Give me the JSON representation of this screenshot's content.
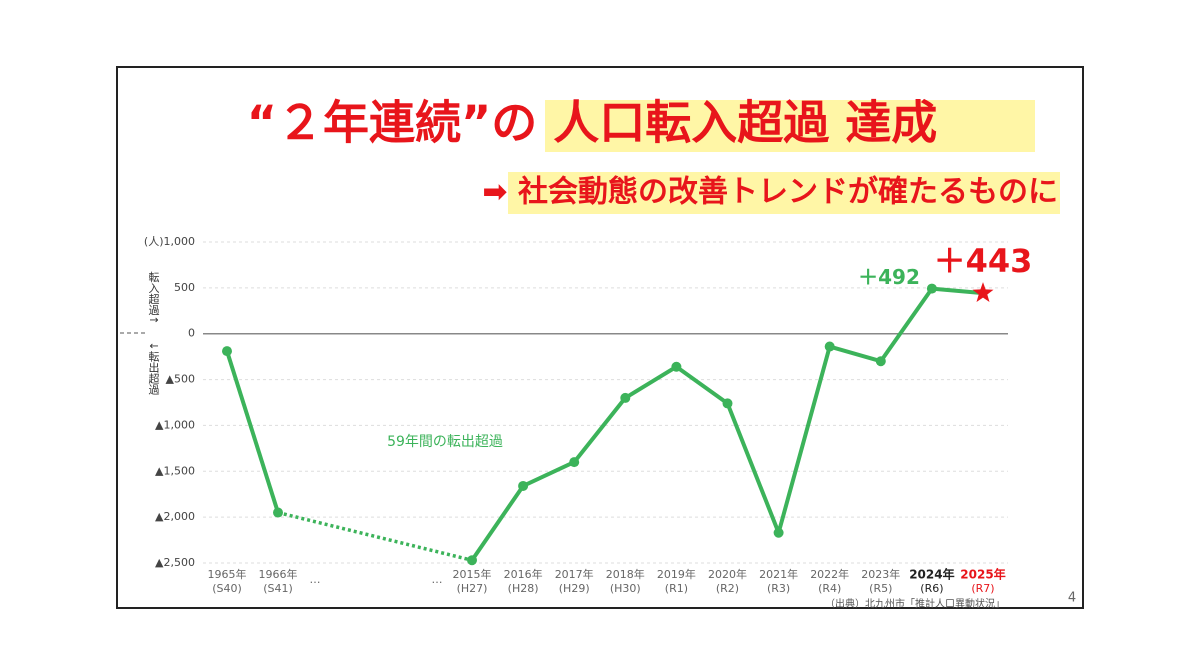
{
  "chart_data": {
    "type": "line",
    "title": "“２年連続”の 人口転入超過 達成",
    "subtitle": "➡ 社会動態の改善トレンドが確たるものに",
    "y_label_up": "転入超過↑",
    "y_label_down": "↓転出超過",
    "annotation": "59年間の転出超過",
    "source": "（出典）北九州市「推計人口異動状況」",
    "page_number": "4",
    "categories": [
      "1965年",
      "1966年",
      "…",
      "…",
      "2015年",
      "2016年",
      "2017年",
      "2018年",
      "2019年",
      "2020年",
      "2021年",
      "2022年",
      "2023年",
      "2024年",
      "2025年"
    ],
    "category_sublabels": [
      "(S40)",
      "(S41)",
      null,
      null,
      "(H27)",
      "(H28)",
      "(H29)",
      "(H30)",
      "(R1)",
      "(R2)",
      "(R3)",
      "(R4)",
      "(R5)",
      "(R6)",
      "(R7)"
    ],
    "values": [
      -190,
      -1950,
      null,
      null,
      -2470,
      -1660,
      -1400,
      -700,
      -360,
      -760,
      -2170,
      -140,
      -300,
      492,
      443
    ],
    "value_labels": [
      null,
      null,
      null,
      null,
      null,
      null,
      null,
      null,
      null,
      null,
      null,
      null,
      null,
      "＋492",
      "＋443"
    ],
    "color": "#3cb35a",
    "ylim": [
      -2500,
      1000
    ],
    "yticks": [
      {
        "value": -2500,
        "label": "▲2,500"
      },
      {
        "value": -2000,
        "label": "▲2,000"
      },
      {
        "value": -1500,
        "label": "▲1,500"
      },
      {
        "value": -1000,
        "label": "▲1,000"
      },
      {
        "value": -500,
        "label": "▲500"
      },
      0,
      500,
      {
        "value": 1000,
        "label": "(人)1,000"
      }
    ],
    "grid": true
  }
}
